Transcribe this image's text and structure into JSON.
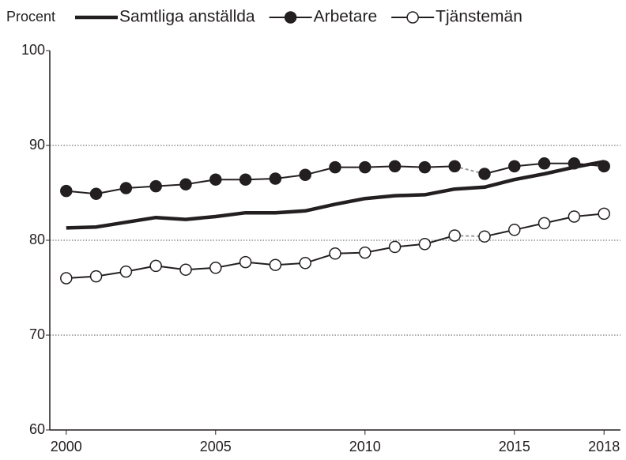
{
  "chart_data": {
    "type": "line",
    "y_label": "Procent",
    "x": [
      2000,
      2001,
      2002,
      2003,
      2004,
      2005,
      2006,
      2007,
      2008,
      2009,
      2010,
      2011,
      2012,
      2013,
      2014,
      2015,
      2016,
      2017,
      2018
    ],
    "series": [
      {
        "name": "Samtliga anställda",
        "color": "#231f20",
        "marker": "none",
        "values": [
          81.3,
          81.4,
          81.9,
          82.4,
          82.2,
          82.5,
          82.9,
          82.9,
          83.1,
          83.8,
          84.4,
          84.7,
          84.8,
          85.4,
          85.6,
          86.4,
          87.0,
          87.7,
          88.3
        ]
      },
      {
        "name": "Arbetare",
        "color": "#231f20",
        "marker": "filled",
        "values": [
          85.2,
          84.9,
          85.5,
          85.7,
          85.9,
          86.4,
          86.4,
          86.5,
          86.9,
          87.7,
          87.7,
          87.8,
          87.7,
          87.8,
          87.0,
          87.8,
          88.1,
          88.1,
          87.8
        ]
      },
      {
        "name": "Tjänstemän",
        "color": "#231f20",
        "marker": "open",
        "values": [
          76.0,
          76.2,
          76.7,
          77.3,
          76.9,
          77.1,
          77.7,
          77.4,
          77.6,
          78.6,
          78.7,
          79.3,
          79.6,
          80.5,
          80.4,
          81.1,
          81.8,
          82.5,
          82.8
        ]
      }
    ],
    "dashed_between": [
      2013,
      2014
    ],
    "xlim": [
      1999.45,
      2018.55
    ],
    "xticks": [
      2000,
      2005,
      2010,
      2015,
      2018
    ],
    "ylim": [
      60,
      100
    ],
    "yticks": [
      60,
      70,
      80,
      90,
      100
    ],
    "grid": true
  }
}
